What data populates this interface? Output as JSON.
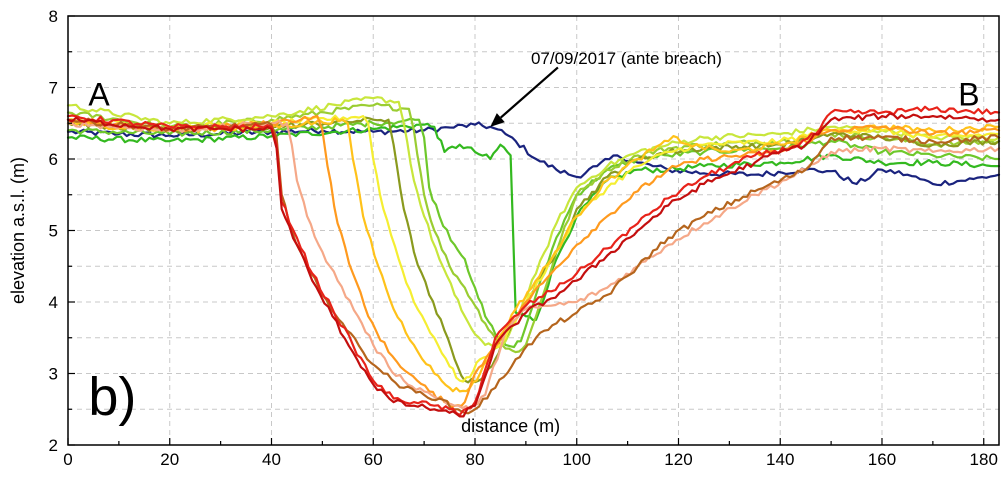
{
  "chart_data": {
    "type": "line",
    "title": "",
    "xlabel": "distance (m)",
    "ylabel": "elevation a.s.l. (m)",
    "xlim": [
      0,
      183
    ],
    "ylim": [
      2,
      8
    ],
    "x_ticks": [
      0,
      20,
      40,
      60,
      80,
      100,
      120,
      140,
      160,
      180
    ],
    "y_ticks": [
      2,
      3,
      4,
      5,
      6,
      7,
      8
    ],
    "grid": true,
    "legend": "none",
    "section_labels": {
      "left": "A",
      "right": "B"
    },
    "panel_label": "b)",
    "annotation": {
      "text": "07/09/2017 (ante breach)",
      "points_to": {
        "x": 83,
        "y": 6.45
      }
    },
    "series": [
      {
        "color": "#1a237e",
        "x": [
          0,
          10,
          20,
          30,
          40,
          50,
          60,
          70,
          75,
          80,
          83,
          86,
          88,
          92,
          96,
          100,
          104,
          108,
          112,
          118,
          125,
          135,
          145,
          150,
          155,
          160,
          165,
          170,
          178,
          183
        ],
        "y": [
          6.38,
          6.35,
          6.33,
          6.35,
          6.38,
          6.4,
          6.38,
          6.4,
          6.44,
          6.48,
          6.45,
          6.35,
          6.25,
          6.0,
          5.85,
          5.75,
          5.9,
          6.05,
          5.95,
          5.85,
          5.8,
          5.78,
          5.85,
          5.83,
          5.65,
          5.85,
          5.78,
          5.65,
          5.72,
          5.78
        ]
      },
      {
        "color": "#33b91f",
        "x": [
          0,
          20,
          40,
          60,
          70,
          72,
          74,
          77,
          80,
          83,
          85,
          87,
          88,
          90,
          92,
          96,
          100,
          106,
          112,
          118,
          125,
          140,
          150,
          160,
          170,
          183
        ],
        "y": [
          6.3,
          6.25,
          6.32,
          6.42,
          6.48,
          6.45,
          6.1,
          6.2,
          6.1,
          6.0,
          6.2,
          6.05,
          3.85,
          3.8,
          3.75,
          4.6,
          5.2,
          5.7,
          5.85,
          5.85,
          5.9,
          5.95,
          6.05,
          5.95,
          5.95,
          5.9
        ]
      },
      {
        "color": "#6ec82b",
        "x": [
          0,
          20,
          40,
          60,
          69,
          70,
          71,
          73,
          76,
          78,
          80,
          82,
          84,
          86,
          87,
          89,
          92,
          96,
          100,
          106,
          112,
          118,
          125,
          140,
          150,
          160,
          170,
          183
        ],
        "y": [
          6.4,
          6.35,
          6.4,
          6.5,
          6.55,
          6.3,
          5.6,
          5.2,
          4.8,
          4.6,
          4.2,
          3.8,
          3.55,
          3.4,
          3.38,
          3.45,
          4.1,
          4.9,
          5.5,
          5.85,
          6.0,
          6.05,
          6.1,
          6.15,
          6.25,
          6.1,
          6.05,
          6.0
        ]
      },
      {
        "color": "#9acd32",
        "x": [
          0,
          20,
          40,
          60,
          67,
          68,
          70,
          72,
          75,
          78,
          80,
          82,
          84,
          86,
          88,
          90,
          92,
          96,
          100,
          106,
          112,
          118,
          125,
          140,
          150,
          160,
          170,
          183
        ],
        "y": [
          6.65,
          6.45,
          6.55,
          6.75,
          6.7,
          6.4,
          5.5,
          5.0,
          4.5,
          4.2,
          3.95,
          3.7,
          3.5,
          3.35,
          3.3,
          3.4,
          3.8,
          4.7,
          5.5,
          5.85,
          6.05,
          6.15,
          6.2,
          6.25,
          6.35,
          6.3,
          6.2,
          6.25
        ]
      },
      {
        "color": "#c8e63c",
        "x": [
          0,
          20,
          40,
          60,
          65,
          66,
          68,
          70,
          73,
          76,
          78,
          80,
          82,
          84,
          86,
          88,
          92,
          96,
          100,
          106,
          112,
          118,
          125,
          140,
          150,
          160,
          170,
          183
        ],
        "y": [
          6.75,
          6.5,
          6.6,
          6.85,
          6.8,
          6.5,
          5.7,
          5.2,
          4.6,
          4.1,
          3.8,
          3.55,
          3.4,
          3.35,
          3.45,
          3.75,
          4.4,
          5.1,
          5.6,
          5.9,
          6.1,
          6.2,
          6.3,
          6.35,
          6.45,
          6.4,
          6.3,
          6.3
        ]
      },
      {
        "color": "#8a9a1e",
        "x": [
          0,
          20,
          40,
          60,
          63,
          64,
          66,
          68,
          71,
          74,
          76,
          78,
          80,
          82,
          84,
          86,
          90,
          96,
          100,
          106,
          112,
          118,
          125,
          140,
          150,
          160,
          170,
          183
        ],
        "y": [
          6.5,
          6.4,
          6.45,
          6.55,
          6.55,
          6.2,
          5.3,
          4.7,
          4.1,
          3.6,
          3.2,
          2.9,
          2.88,
          3.0,
          3.2,
          3.5,
          4.0,
          4.7,
          5.3,
          5.75,
          6.0,
          6.1,
          6.15,
          6.2,
          6.35,
          6.3,
          6.2,
          6.25
        ]
      },
      {
        "color": "#f5ee32",
        "x": [
          0,
          20,
          40,
          58,
          59,
          60,
          62,
          65,
          68,
          72,
          75,
          77,
          79,
          81,
          83,
          86,
          90,
          96,
          100,
          106,
          112,
          118,
          125,
          140,
          150,
          160,
          170,
          183
        ],
        "y": [
          6.55,
          6.45,
          6.5,
          6.6,
          6.5,
          6.0,
          5.3,
          4.6,
          4.0,
          3.5,
          3.1,
          2.9,
          2.95,
          3.2,
          3.3,
          3.5,
          4.0,
          4.7,
          5.2,
          5.6,
          5.9,
          6.1,
          6.2,
          6.25,
          6.4,
          6.4,
          6.3,
          6.35
        ]
      },
      {
        "color": "#ffc21a",
        "x": [
          0,
          20,
          40,
          54,
          55,
          56,
          58,
          61,
          64,
          68,
          72,
          75,
          77,
          79,
          81,
          84,
          88,
          95,
          100,
          106,
          112,
          118,
          119,
          122,
          130,
          140,
          150,
          160,
          170,
          183
        ],
        "y": [
          6.5,
          6.4,
          6.45,
          6.55,
          6.5,
          6.0,
          5.2,
          4.5,
          3.9,
          3.4,
          3.0,
          2.8,
          2.75,
          2.8,
          3.0,
          3.4,
          3.9,
          4.6,
          5.2,
          5.7,
          6.0,
          6.25,
          6.32,
          6.2,
          6.1,
          6.2,
          6.4,
          6.45,
          6.4,
          6.45
        ]
      },
      {
        "color": "#ff9a1e",
        "x": [
          0,
          20,
          40,
          49,
          50,
          51,
          53,
          56,
          59,
          63,
          67,
          71,
          74,
          76,
          78,
          80,
          83,
          86,
          90,
          95,
          100,
          106,
          112,
          118,
          125,
          140,
          150,
          160,
          170,
          183
        ],
        "y": [
          6.55,
          6.4,
          6.5,
          6.6,
          6.4,
          5.9,
          5.1,
          4.4,
          3.8,
          3.3,
          3.0,
          2.75,
          2.6,
          2.55,
          2.6,
          3.0,
          3.3,
          3.6,
          4.0,
          4.4,
          4.8,
          5.2,
          5.55,
          5.85,
          6.0,
          6.1,
          6.4,
          6.45,
          6.35,
          6.4
        ]
      },
      {
        "color": "#f5a888",
        "x": [
          0,
          20,
          40,
          43,
          44,
          45,
          47,
          50,
          53,
          57,
          60,
          63,
          66,
          70,
          73,
          76,
          79,
          82,
          86,
          90,
          95,
          100,
          106,
          112,
          118,
          125,
          135,
          145,
          150,
          160,
          170,
          183
        ],
        "y": [
          6.5,
          6.4,
          6.5,
          6.5,
          6.2,
          5.7,
          5.2,
          4.7,
          4.3,
          3.8,
          3.4,
          3.1,
          2.9,
          2.75,
          2.65,
          2.55,
          2.5,
          2.7,
          3.6,
          3.9,
          3.95,
          4.0,
          4.2,
          4.5,
          4.8,
          5.1,
          5.5,
          5.85,
          6.1,
          6.15,
          6.1,
          6.15
        ]
      },
      {
        "color": "#b5651d",
        "x": [
          0,
          20,
          40,
          41,
          42,
          44,
          47,
          50,
          54,
          58,
          62,
          66,
          70,
          73,
          76,
          78,
          80,
          84,
          88,
          92,
          96,
          100,
          106,
          112,
          118,
          125,
          135,
          145,
          150,
          160,
          170,
          183
        ],
        "y": [
          6.55,
          6.42,
          6.48,
          6.3,
          5.5,
          5.0,
          4.5,
          4.1,
          3.7,
          3.3,
          3.0,
          2.8,
          2.7,
          2.65,
          2.5,
          2.45,
          2.5,
          2.8,
          3.2,
          3.5,
          3.7,
          3.85,
          4.1,
          4.5,
          4.9,
          5.2,
          5.55,
          5.85,
          6.3,
          6.3,
          6.25,
          6.3
        ]
      },
      {
        "color": "#e8231a",
        "x": [
          0,
          20,
          40,
          41,
          42,
          45,
          48,
          52,
          56,
          60,
          64,
          68,
          72,
          75,
          77,
          80,
          84,
          90,
          95,
          100,
          106,
          112,
          118,
          125,
          135,
          142,
          147,
          150,
          160,
          170,
          183
        ],
        "y": [
          6.6,
          6.45,
          6.45,
          6.2,
          5.4,
          4.9,
          4.4,
          3.9,
          3.4,
          2.9,
          2.65,
          2.6,
          2.55,
          2.5,
          2.42,
          2.6,
          3.5,
          3.95,
          4.15,
          4.4,
          4.75,
          5.1,
          5.45,
          5.75,
          6.05,
          6.15,
          6.35,
          6.65,
          6.65,
          6.7,
          6.65
        ]
      },
      {
        "color": "#c40e0e",
        "x": [
          0,
          20,
          40,
          41,
          42,
          45,
          48,
          52,
          56,
          60,
          64,
          68,
          72,
          75,
          77,
          80,
          84,
          90,
          95,
          100,
          106,
          112,
          118,
          125,
          135,
          140,
          145,
          150,
          160,
          170,
          183
        ],
        "y": [
          6.55,
          6.42,
          6.42,
          6.15,
          5.3,
          4.8,
          4.3,
          3.8,
          3.3,
          2.85,
          2.6,
          2.55,
          2.5,
          2.45,
          2.4,
          2.55,
          3.4,
          3.85,
          4.05,
          4.3,
          4.65,
          5.0,
          5.35,
          5.65,
          5.95,
          6.1,
          6.2,
          6.55,
          6.6,
          6.6,
          6.55
        ]
      }
    ]
  }
}
